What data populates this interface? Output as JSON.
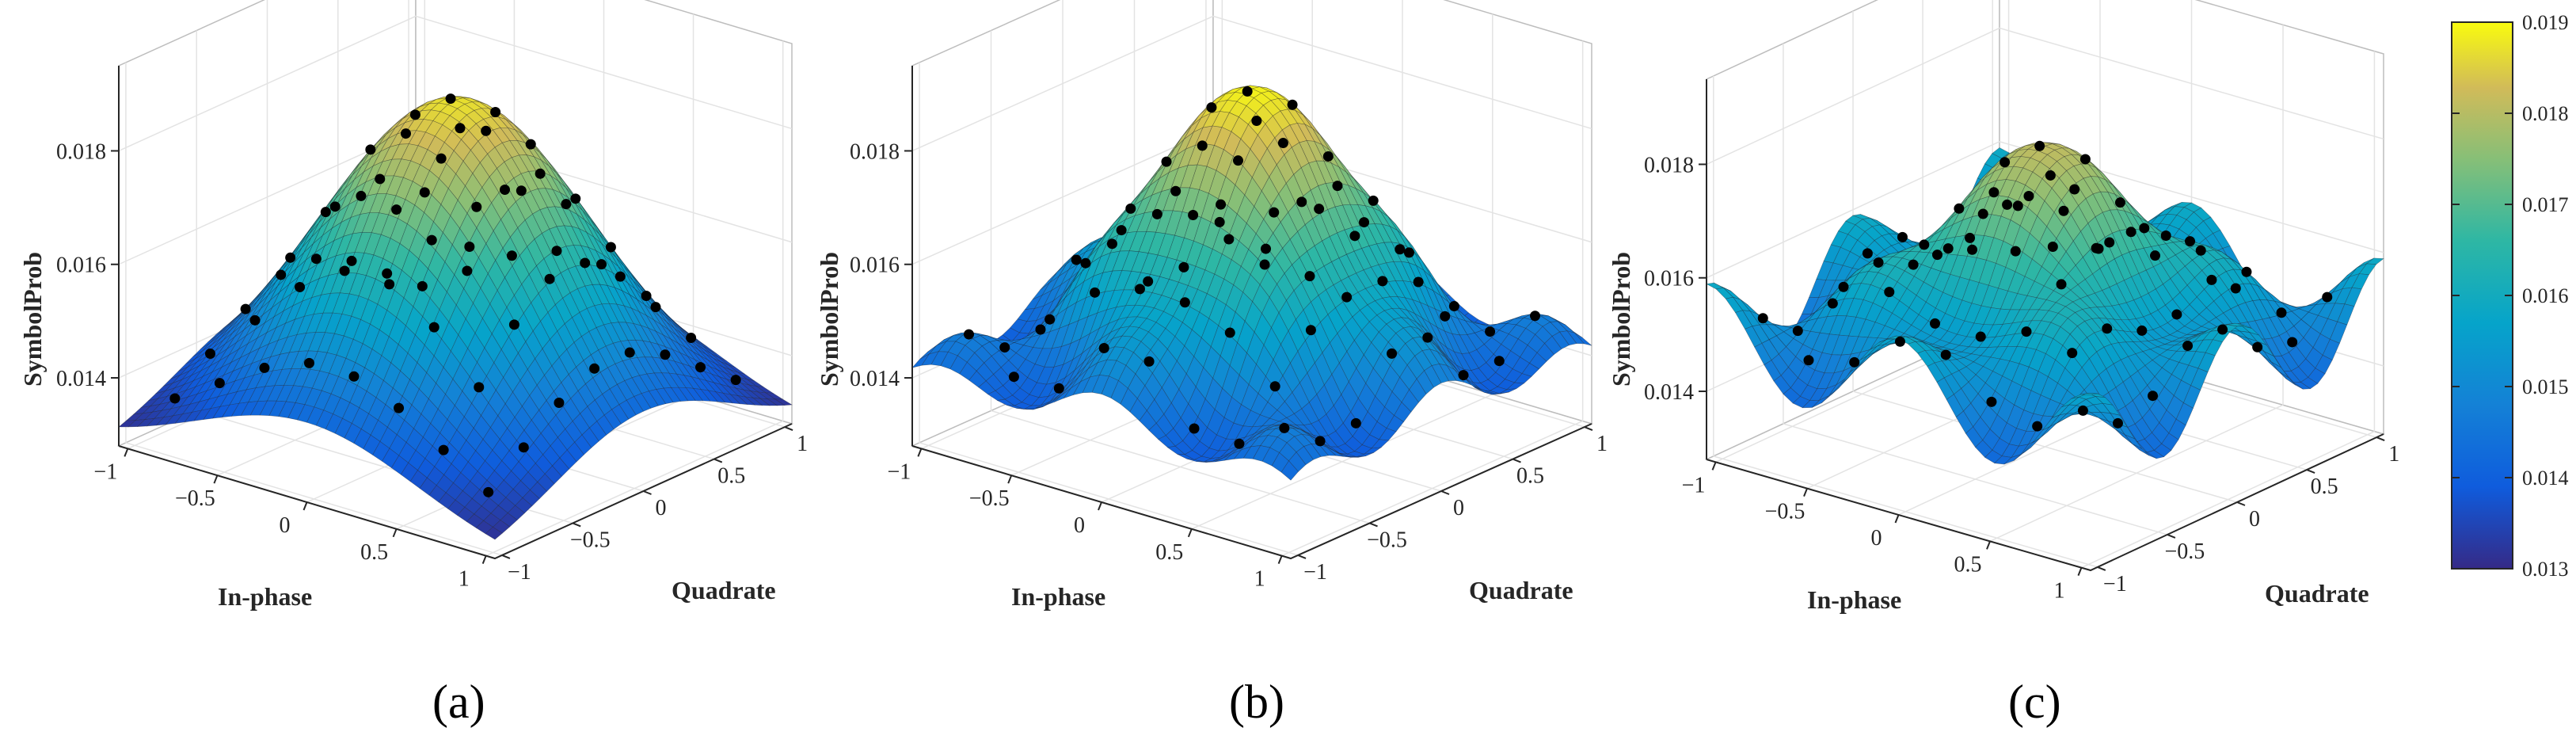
{
  "chart_data": {
    "type": "surface3d",
    "colormap": "parula",
    "colorbar": {
      "min": 0.013,
      "max": 0.019,
      "ticks": [
        "0.013",
        "0.014",
        "0.015",
        "0.016",
        "0.017",
        "0.018",
        "0.019"
      ]
    },
    "panels": [
      {
        "id": "a",
        "caption": "(a)",
        "xlabel": "In-phase",
        "ylabel": "Quadrate",
        "zlabel": "SymbolProb",
        "xlim": [
          -1.05,
          1.05
        ],
        "ylim": [
          -1.05,
          1.05
        ],
        "zlim": [
          0.0128,
          0.0195
        ],
        "xticks": [
          "−1",
          "−0.5",
          "0",
          "0.5",
          "1"
        ],
        "yticks": [
          "−1",
          "−0.5",
          "0",
          "0.5",
          "1"
        ],
        "zticks": [
          "0.014",
          "0.016",
          "0.018"
        ],
        "surface": {
          "base": 0.0128,
          "peak": 0.0187,
          "sigma": 0.62,
          "ripple": 0.0,
          "ripple_freq": 0
        },
        "markers": "8x8 constellation grid on the surface"
      },
      {
        "id": "b",
        "caption": "(b)",
        "xlabel": "In-phase",
        "ylabel": "Quadrate",
        "zlabel": "SymbolProb",
        "xlim": [
          -1.05,
          1.05
        ],
        "ylim": [
          -1.05,
          1.05
        ],
        "zlim": [
          0.0128,
          0.0195
        ],
        "xticks": [
          "−1",
          "−0.5",
          "0",
          "0.5",
          "1"
        ],
        "yticks": [
          "−1",
          "−0.5",
          "0",
          "0.5",
          "1"
        ],
        "zticks": [
          "0.014",
          "0.016",
          "0.018"
        ],
        "surface": {
          "base": 0.014,
          "peak": 0.0189,
          "sigma": 0.48,
          "ripple": 0.0006,
          "ripple_freq": 7
        },
        "markers": "8x8 constellation grid on the surface"
      },
      {
        "id": "c",
        "caption": "(c)",
        "xlabel": "In-phase",
        "ylabel": "Quadrate",
        "zlabel": "SymbolProb",
        "xlim": [
          -1.05,
          1.05
        ],
        "ylim": [
          -1.05,
          1.05
        ],
        "zlim": [
          0.0128,
          0.0195
        ],
        "xticks": [
          "−1",
          "−0.5",
          "0",
          "0.5",
          "1"
        ],
        "yticks": [
          "−1",
          "−0.5",
          "0",
          "0.5",
          "1"
        ],
        "zticks": [
          "0.014",
          "0.016",
          "0.018"
        ],
        "surface": {
          "base": 0.015,
          "peak": 0.0181,
          "sigma": 0.4,
          "ripple": 0.0009,
          "ripple_freq": 6
        },
        "markers": "8x8 constellation grid on the surface"
      }
    ]
  }
}
